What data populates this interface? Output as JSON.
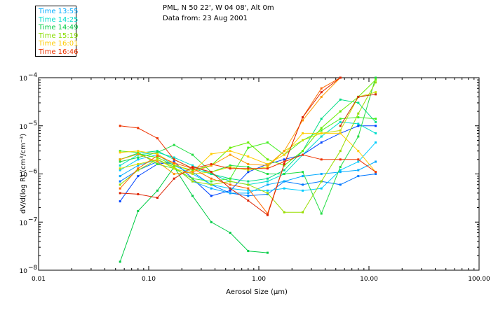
{
  "legend": {
    "entries": [
      {
        "label": "Time 13:55",
        "color": "#00aaff"
      },
      {
        "label": "Time 14:25",
        "color": "#00ddcc"
      },
      {
        "label": "Time 14:49",
        "color": "#00cc44"
      },
      {
        "label": "Time 15:19",
        "color": "#88dd00"
      },
      {
        "label": "Time 16:01",
        "color": "#ffcc00"
      },
      {
        "label": "Time 16:46",
        "color": "#ee3300"
      }
    ]
  },
  "header": {
    "line1": "PML, N 50 22', W 04 08', Alt 0m",
    "line2": "Data from: 23 Aug 2001"
  },
  "chart_data": {
    "type": "line",
    "xscale": "log",
    "yscale": "log",
    "xlim": [
      0.01,
      100
    ],
    "ylim": [
      1e-08,
      0.0001
    ],
    "xlabel": "Aerosol Size (μm)",
    "ylabel": "dV/d(log R) (cm³/cm⁻³)",
    "xtick_labels": [
      {
        "value": 0.01,
        "label": "0.01"
      },
      {
        "value": 0.1,
        "label": "0.10"
      },
      {
        "value": 1,
        "label": "1.00"
      },
      {
        "value": 10,
        "label": "10.00"
      },
      {
        "value": 100,
        "label": "100.00"
      }
    ],
    "ytick_labels": [
      {
        "value": 0.0001,
        "base": "10",
        "exp": "−4"
      },
      {
        "value": 1e-05,
        "base": "10",
        "exp": "−5"
      },
      {
        "value": 1e-06,
        "base": "10",
        "exp": "−6"
      },
      {
        "value": 1e-07,
        "base": "10",
        "exp": "−7"
      },
      {
        "value": 1e-08,
        "base": "10",
        "exp": "−8"
      }
    ],
    "x": [
      0.055,
      0.08,
      0.12,
      0.17,
      0.25,
      0.37,
      0.55,
      0.8,
      1.2,
      1.7,
      2.5,
      3.7,
      5.5,
      8.0,
      11.5
    ],
    "series": [
      {
        "color": "#0044ff",
        "values": [
          2.7e-07,
          9e-07,
          1.6e-06,
          1.8e-06,
          8e-07,
          3.5e-07,
          4.5e-07,
          1.1e-06,
          1.6e-06,
          2e-06,
          2.5e-06,
          4.5e-06,
          7e-06,
          1e-05,
          1e-05
        ]
      },
      {
        "color": "#0077ff",
        "values": [
          7e-07,
          1.2e-06,
          1.8e-06,
          1.6e-06,
          1.1e-06,
          6e-07,
          4e-07,
          3.5e-07,
          3.8e-07,
          7e-07,
          6e-07,
          7e-07,
          6e-07,
          9e-07,
          1e-06
        ]
      },
      {
        "color": "#00aaff",
        "values": [
          9e-07,
          1.5e-06,
          2e-06,
          1.4e-06,
          7e-07,
          5e-07,
          4e-07,
          4e-07,
          6e-07,
          7e-07,
          9e-07,
          1e-06,
          1.1e-06,
          1.2e-06,
          1.8e-06
        ]
      },
      {
        "color": "#00ccff",
        "values": [
          1.2e-06,
          2e-06,
          2.5e-06,
          1.5e-06,
          1e-06,
          6e-07,
          5e-07,
          4.5e-07,
          4.5e-07,
          5e-07,
          4.5e-07,
          5e-07,
          1.2e-06,
          1.8e-06,
          4.5e-06
        ]
      },
      {
        "color": "#00ddcc",
        "values": [
          1.5e-06,
          2.5e-06,
          2.8e-06,
          2.2e-06,
          1.5e-06,
          1e-06,
          7e-07,
          6e-07,
          7e-07,
          1e-06,
          2.5e-06,
          6e-06,
          1.2e-05,
          1.1e-05,
          7e-06
        ]
      },
      {
        "color": "#00dd88",
        "values": [
          2e-06,
          2.7e-06,
          3e-06,
          2e-06,
          1.3e-06,
          1e-06,
          8e-07,
          7e-07,
          8e-07,
          1.2e-06,
          3e-06,
          1.4e-05,
          3.5e-05,
          3e-05,
          1.2e-05
        ]
      },
      {
        "color": "#00cc44",
        "values": [
          1.5e-08,
          1.7e-07,
          4.5e-07,
          1.4e-06,
          3.5e-07,
          1e-07,
          6e-08,
          2.5e-08,
          2.3e-08,
          null,
          null,
          null,
          null,
          null,
          null
        ]
      },
      {
        "color": "#22dd44",
        "values": [
          1.8e-06,
          2.2e-06,
          2.8e-06,
          4e-06,
          2.5e-06,
          1.1e-06,
          1.5e-06,
          1.4e-06,
          1e-06,
          1e-06,
          1.1e-06,
          1.5e-07,
          1.4e-06,
          6e-06,
          0.0001
        ]
      },
      {
        "color": "#44ee22",
        "values": [
          3e-06,
          2.8e-06,
          1.6e-06,
          1.3e-06,
          8e-07,
          7e-07,
          8e-07,
          3.5e-06,
          4.5e-06,
          2.5e-06,
          5e-06,
          8e-06,
          1.4e-05,
          1.5e-05,
          1.4e-05
        ]
      },
      {
        "color": "#66ee00",
        "values": [
          2e-06,
          2.6e-06,
          2.2e-06,
          1.5e-06,
          1.2e-06,
          1.5e-06,
          3.5e-06,
          4.5e-06,
          2e-06,
          1.5e-06,
          3e-06,
          9e-06,
          2e-05,
          4e-05,
          9e-05
        ]
      },
      {
        "color": "#99dd00",
        "values": [
          6e-07,
          1.2e-06,
          2e-06,
          1.4e-06,
          7e-07,
          6e-07,
          7e-07,
          6e-07,
          4e-07,
          1.6e-07,
          1.6e-07,
          7e-07,
          3e-06,
          1.8e-05,
          8e-05
        ]
      },
      {
        "color": "#ccdd00",
        "values": [
          1.3e-06,
          1.6e-06,
          2e-06,
          1.3e-06,
          1e-06,
          1.1e-06,
          1.4e-06,
          1.2e-06,
          1.4e-06,
          3e-06,
          5e-06,
          7e-06,
          8e-06,
          4e-05,
          5e-05
        ]
      },
      {
        "color": "#ffcc00",
        "values": [
          2.8e-06,
          3e-06,
          2.6e-06,
          1.6e-06,
          1.1e-06,
          2.6e-06,
          3e-06,
          2.3e-06,
          1.6e-06,
          2.5e-06,
          7e-06,
          7e-06,
          7e-06,
          3e-06,
          1.1e-06
        ]
      },
      {
        "color": "#ff9900",
        "values": [
          2e-06,
          2.6e-06,
          1.8e-06,
          1e-06,
          1.1e-06,
          1.5e-06,
          2.5e-06,
          1.6e-06,
          1.5e-06,
          3e-06,
          1.3e-05,
          4e-05,
          0.0001,
          null,
          null
        ]
      },
      {
        "color": "#ff6600",
        "values": [
          5e-07,
          1.3e-06,
          2.4e-06,
          1.7e-06,
          1.3e-06,
          8e-07,
          6e-07,
          5e-07,
          1.5e-07,
          1.6e-06,
          1.5e-05,
          6e-05,
          0.0001,
          null,
          null
        ]
      },
      {
        "color": "#ee3300",
        "values": [
          1e-05,
          9e-06,
          5.5e-06,
          2e-06,
          1.3e-06,
          1.6e-06,
          1.3e-06,
          1.3e-06,
          1.3e-06,
          1.8e-06,
          2.5e-06,
          2e-06,
          2e-06,
          2e-06,
          1.1e-06
        ]
      },
      {
        "color": "#dd2200",
        "values": [
          4e-07,
          3.8e-07,
          3.2e-07,
          8e-07,
          1.4e-06,
          1.1e-06,
          5e-07,
          2.8e-07,
          1.4e-07,
          1.6e-06,
          1.5e-05,
          5e-05,
          0.0001,
          null,
          null
        ]
      },
      {
        "color": "#cc3300",
        "values": [
          null,
          null,
          null,
          null,
          null,
          null,
          null,
          null,
          null,
          null,
          null,
          null,
          1e-05,
          4e-05,
          4.5e-05
        ]
      }
    ]
  }
}
